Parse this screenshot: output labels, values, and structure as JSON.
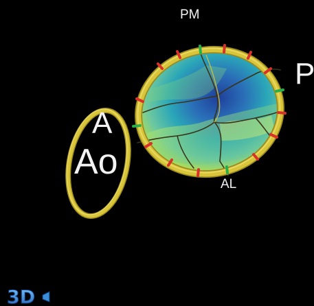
{
  "labels": {
    "pm": "PM",
    "p": "P",
    "a": "A",
    "ao": "Ao",
    "al": "AL"
  },
  "logo": {
    "text": "3D",
    "icon": "3d-logo-icon"
  },
  "colors": {
    "background": "#000000",
    "annulus": "#d8c53a",
    "annulus_highlight": "#f0e070",
    "marker_red": "#d8312a",
    "marker_green": "#27b04a",
    "leaflet_dark": "#1f3f9a",
    "leaflet_mid": "#2aa6b8",
    "leaflet_light": "#b8e04a",
    "coaptation_line": "#3a3418",
    "logo_blue": "#3a8fd8"
  }
}
